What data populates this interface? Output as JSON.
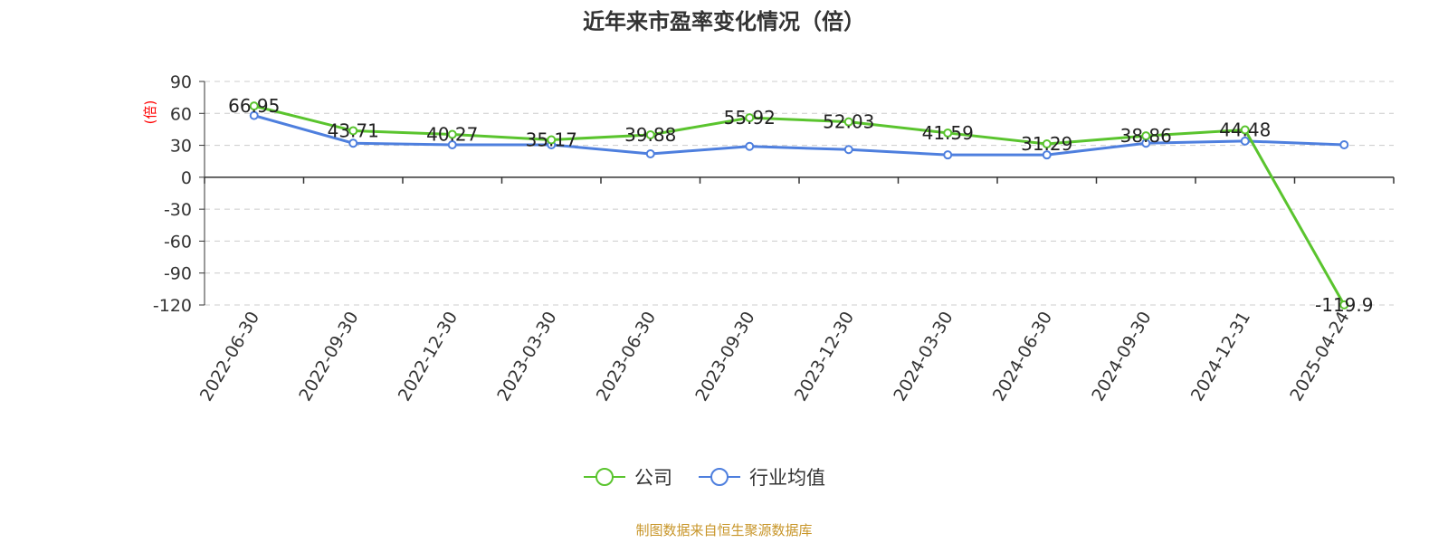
{
  "chart_data": {
    "type": "line",
    "title": "近年来市盈率变化情况（倍）",
    "ylabel": "(倍)",
    "ylim": [
      -120,
      90
    ],
    "yticks": [
      "90",
      "60",
      "30",
      "0",
      "-30",
      "-60",
      "-90",
      "-120"
    ],
    "categories": [
      "2022-06-30",
      "2022-09-30",
      "2022-12-30",
      "2023-03-30",
      "2023-06-30",
      "2023-09-30",
      "2023-12-30",
      "2024-03-30",
      "2024-06-30",
      "2024-09-30",
      "2024-12-31",
      "2025-04-24"
    ],
    "series": [
      {
        "name": "公司",
        "color": "#5ac42e",
        "values": [
          66.95,
          43.71,
          40.27,
          35.17,
          39.88,
          55.92,
          52.03,
          41.59,
          31.29,
          38.86,
          44.48,
          -119.9
        ],
        "labels": [
          "66.95",
          "43.71",
          "40.27",
          "35.17",
          "39.88",
          "55.92",
          "52.03",
          "41.59",
          "31.29",
          "38.86",
          "44.48",
          "-119.9"
        ]
      },
      {
        "name": "行业均值",
        "color": "#4e7fde",
        "values": [
          58,
          32,
          30.5,
          30.5,
          22,
          29,
          26,
          21,
          21,
          32,
          34,
          30.5
        ]
      }
    ],
    "grid": true,
    "legend_position": "bottom-center",
    "ylabel_color": "#ff0000"
  },
  "source": "制图数据来自恒生聚源数据库",
  "source_color": "#c8962a"
}
